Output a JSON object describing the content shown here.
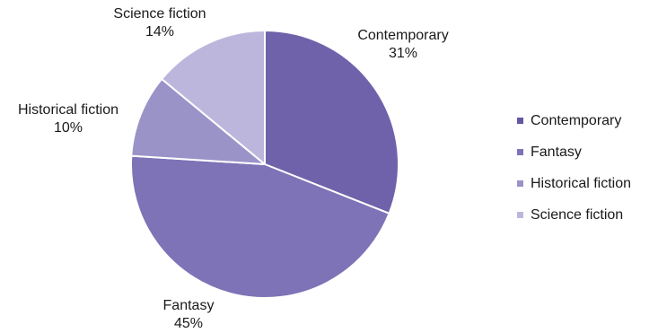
{
  "chart_data": {
    "type": "pie",
    "title": "",
    "slices": [
      {
        "label": "Contemporary",
        "value": 31,
        "value_label": "31%",
        "color": "#7062aa"
      },
      {
        "label": "Fantasy",
        "value": 45,
        "value_label": "45%",
        "color": "#7d73b6"
      },
      {
        "label": "Historical fiction",
        "value": 10,
        "value_label": "10%",
        "color": "#9a93c8"
      },
      {
        "label": "Science fiction",
        "value": 14,
        "value_label": "14%",
        "color": "#bdb6dc"
      }
    ],
    "start_angle_deg": 0,
    "direction": "clockwise",
    "slice_border_color": "#ffffff",
    "legend_position": "right"
  },
  "legend": {
    "items": [
      {
        "label": "Contemporary",
        "color": "#6456a3"
      },
      {
        "label": "Fantasy",
        "color": "#7d73b6"
      },
      {
        "label": "Historical fiction",
        "color": "#9a93c8"
      },
      {
        "label": "Science fiction",
        "color": "#bdb6dc"
      }
    ]
  }
}
